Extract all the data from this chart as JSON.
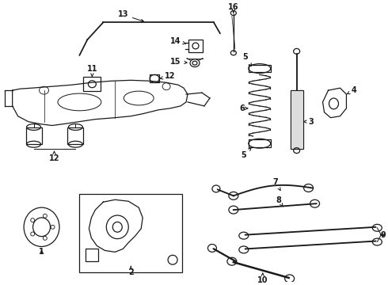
{
  "bg_color": "#ffffff",
  "lc": "#1a1a1a",
  "lw": 0.9,
  "fontsize": 7.0
}
